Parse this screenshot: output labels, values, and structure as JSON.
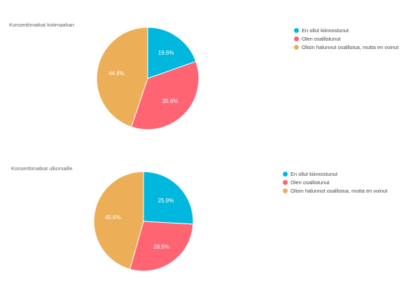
{
  "chart_data": [
    {
      "type": "pie",
      "title": "Konserttimatkat kotimaahan",
      "labels": [
        "En ollut kiinnostunut",
        "Olen osallistunut",
        "Olisin halunnut osallistua, mutta en voinut"
      ],
      "values": [
        19.6,
        35.6,
        44.8
      ],
      "value_labels": [
        "19.6%",
        "35.6%",
        "44.8%"
      ],
      "colors": [
        "#00b8de",
        "#ff6473",
        "#edae58"
      ],
      "legend": "right"
    },
    {
      "type": "pie",
      "title": "Konserttimatkat ulkomaille",
      "labels": [
        "En ollut kiinnostunut",
        "Olen osallistunut",
        "Olisin halunnut osallistua, mutta en voinut"
      ],
      "values": [
        25.9,
        28.5,
        45.6
      ],
      "value_labels": [
        "25.9%",
        "28.5%",
        "45.6%"
      ],
      "colors": [
        "#00b8de",
        "#ff6473",
        "#edae58"
      ],
      "legend": "right"
    }
  ]
}
